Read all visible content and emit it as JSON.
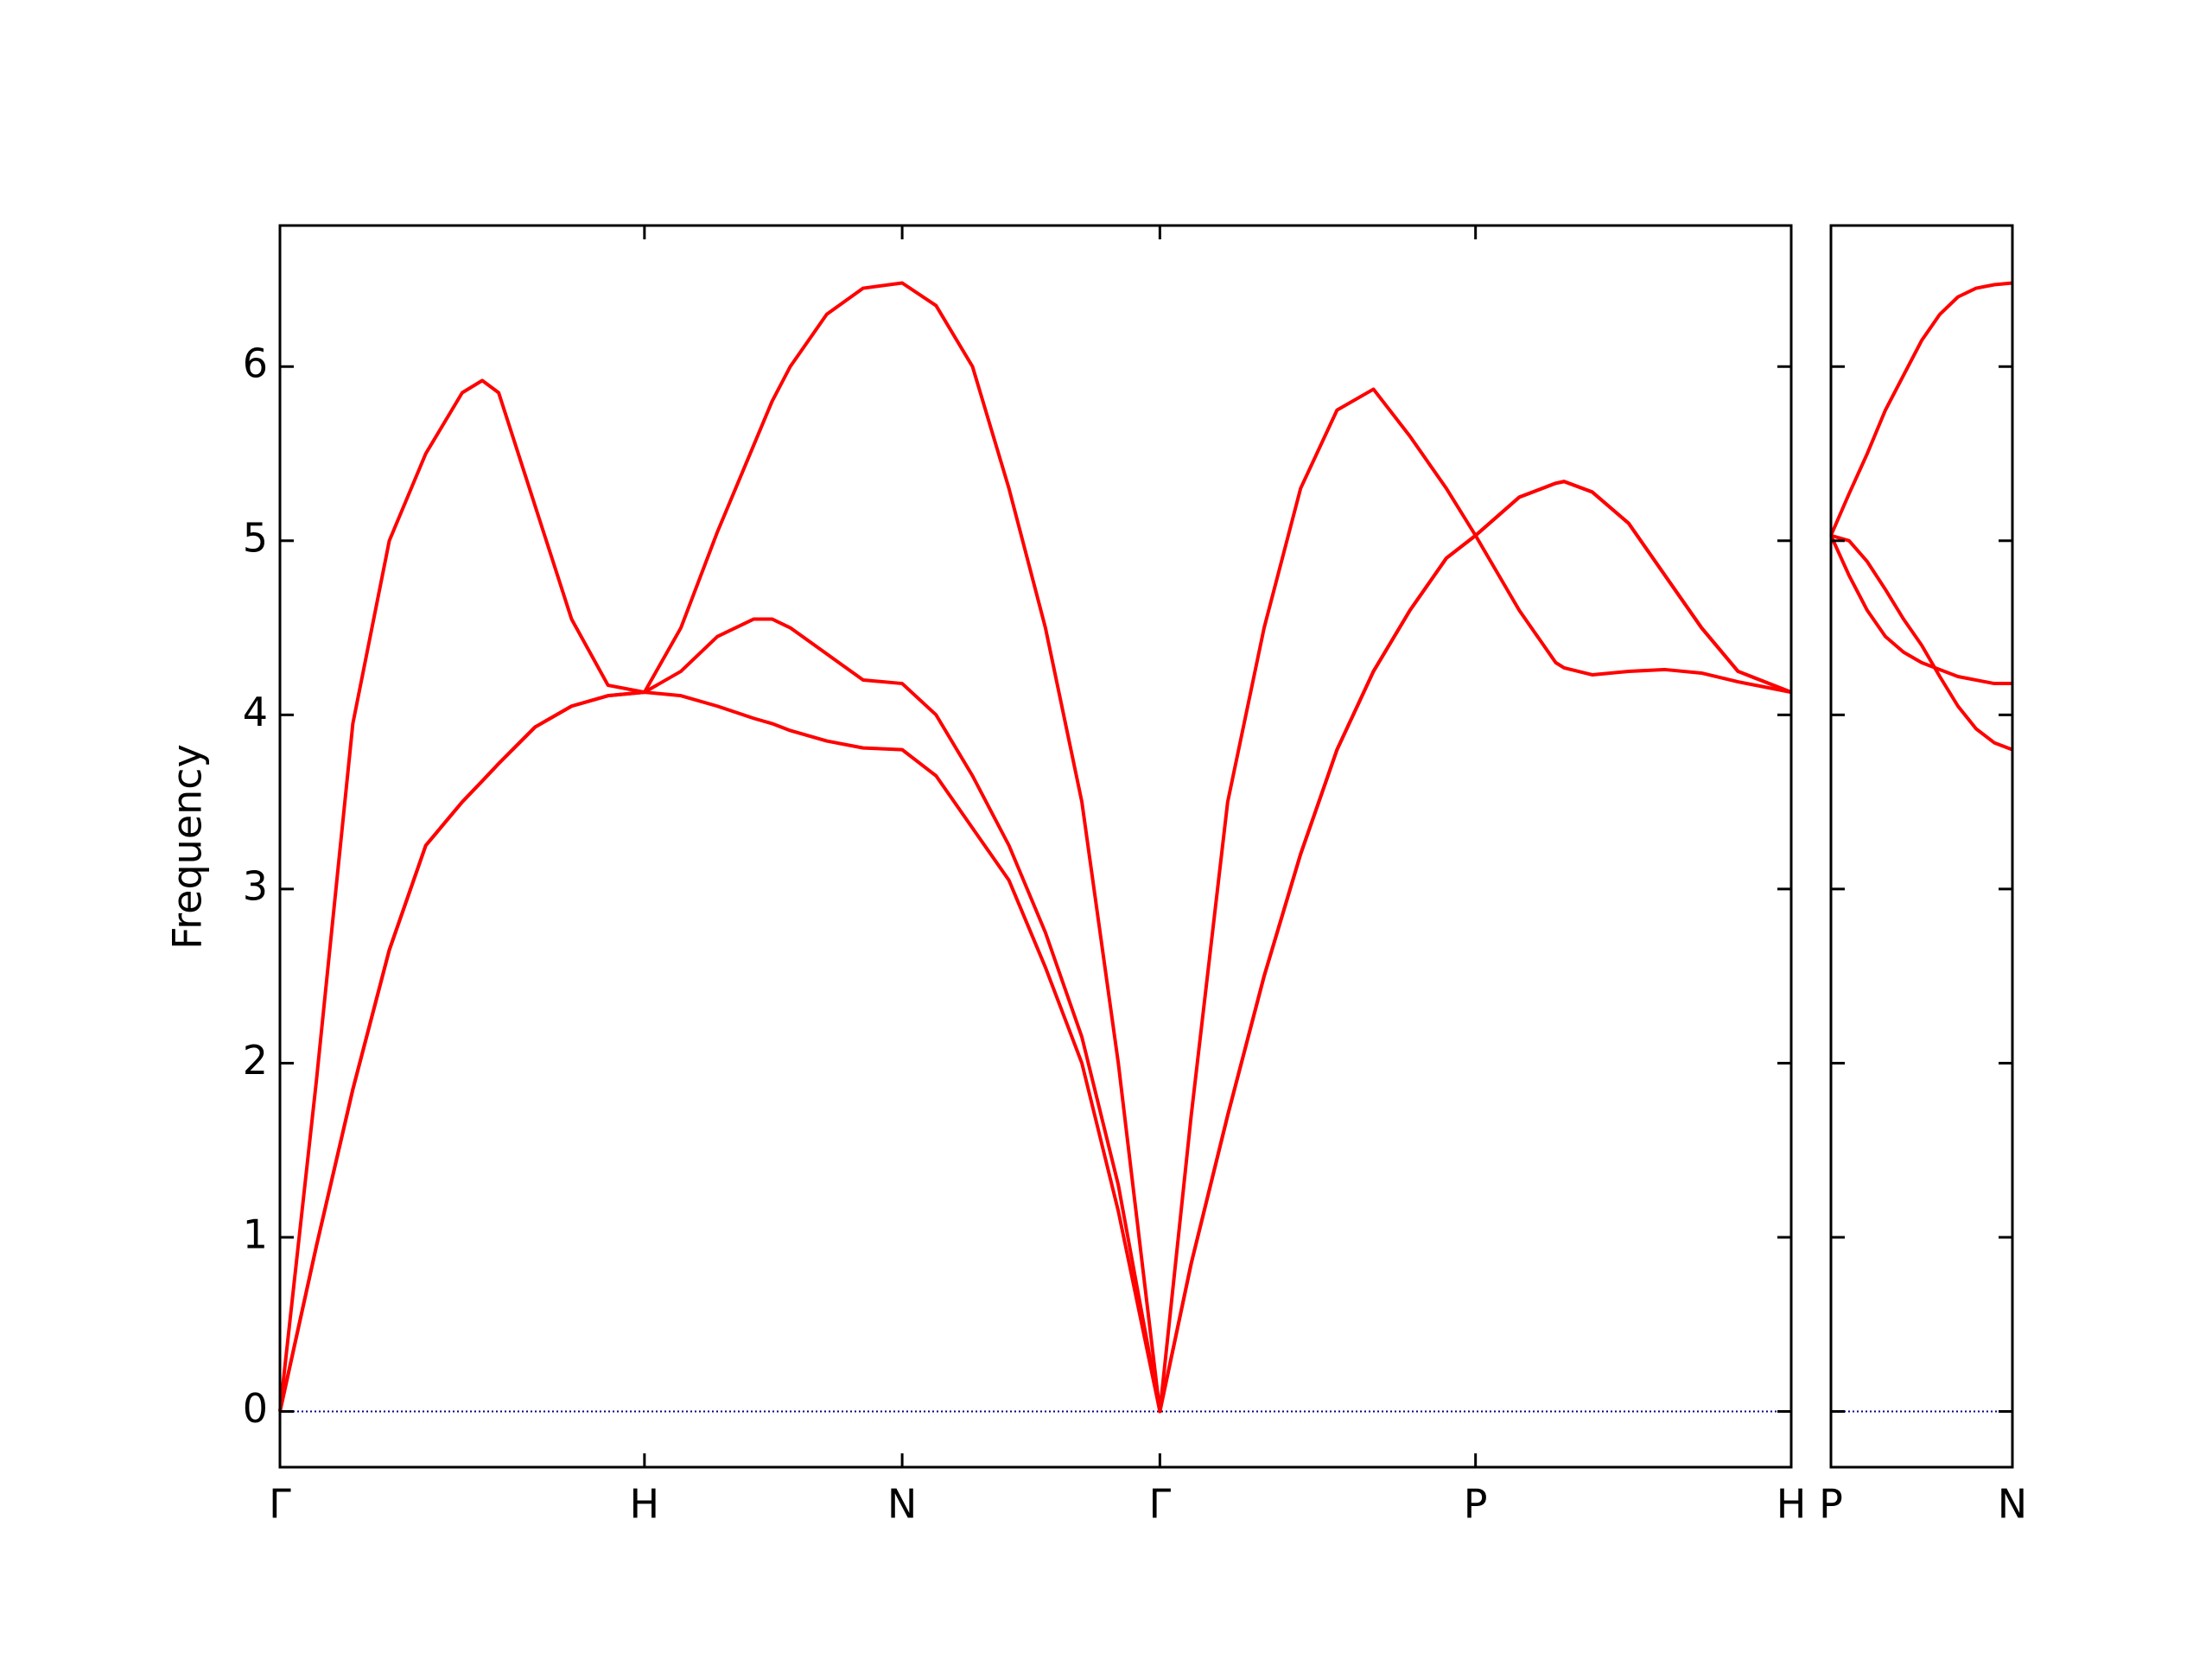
{
  "chart_data": [
    {
      "type": "line",
      "ylabel": "Frequency",
      "x": [
        0,
        0.1,
        0.2,
        0.3,
        0.4,
        0.5,
        0.555,
        0.6,
        0.7,
        0.8,
        0.9,
        1.0,
        1.1,
        1.2,
        1.3,
        1.35,
        1.4,
        1.5,
        1.6,
        1.707,
        1.8,
        1.9,
        2.0,
        2.1,
        2.2,
        2.3,
        2.414,
        2.5,
        2.6,
        2.7,
        2.8,
        2.9,
        3.0,
        3.1,
        3.2,
        3.28,
        3.4,
        3.5,
        3.523,
        3.6,
        3.7,
        3.8,
        3.9,
        4.0,
        4.146
      ],
      "series": [
        {
          "color": "#ff0000",
          "values": [
            0,
            0.95,
            1.85,
            2.65,
            3.25,
            3.5,
            3.62,
            3.72,
            3.93,
            4.05,
            4.11,
            4.13,
            4.11,
            4.05,
            3.98,
            3.95,
            3.91,
            3.85,
            3.81,
            3.8,
            3.65,
            3.35,
            3.05,
            2.55,
            2.0,
            1.15,
            0,
            0.85,
            1.7,
            2.5,
            3.2,
            3.8,
            4.25,
            4.6,
            4.9,
            5.03,
            5.25,
            5.33,
            5.34,
            5.28,
            5.1,
            4.8,
            4.5,
            4.25,
            4.13
          ]
        },
        {
          "color": "#ff0000",
          "values": [
            0,
            0.95,
            1.85,
            2.65,
            3.25,
            3.5,
            3.62,
            3.72,
            3.93,
            4.05,
            4.11,
            4.13,
            4.25,
            4.45,
            4.55,
            4.55,
            4.5,
            4.35,
            4.2,
            4.18,
            4.0,
            3.65,
            3.25,
            2.75,
            2.15,
            1.3,
            0,
            0.85,
            1.7,
            2.5,
            3.2,
            3.8,
            4.25,
            4.6,
            4.9,
            5.03,
            5.25,
            5.33,
            5.34,
            5.28,
            5.1,
            4.8,
            4.5,
            4.25,
            4.13
          ]
        },
        {
          "color": "#ff0000",
          "values": [
            0,
            1.9,
            3.95,
            5.0,
            5.5,
            5.85,
            5.92,
            5.85,
            5.2,
            4.55,
            4.17,
            4.13,
            4.5,
            5.05,
            5.55,
            5.8,
            6.0,
            6.3,
            6.45,
            6.48,
            6.35,
            6.0,
            5.3,
            4.5,
            3.5,
            2.0,
            0,
            1.7,
            3.5,
            4.5,
            5.3,
            5.75,
            5.87,
            5.6,
            5.3,
            5.03,
            4.6,
            4.3,
            4.27,
            4.23,
            4.25,
            4.26,
            4.24,
            4.19,
            4.13
          ]
        }
      ],
      "xlim": [
        0,
        4.146
      ],
      "xticks": [
        {
          "value": 0,
          "label": "Γ"
        },
        {
          "value": 1.0,
          "label": "H"
        },
        {
          "value": 1.707,
          "label": "N"
        },
        {
          "value": 2.414,
          "label": "Γ"
        },
        {
          "value": 3.28,
          "label": "P"
        },
        {
          "value": 4.146,
          "label": "H"
        }
      ],
      "ylim": [
        -0.32,
        6.81
      ],
      "yticks": [
        0,
        1,
        2,
        3,
        4,
        5,
        6
      ],
      "reference_line": {
        "value": 0,
        "color": "#00008b"
      }
    },
    {
      "type": "line",
      "x": [
        0,
        0.05,
        0.1,
        0.15,
        0.2,
        0.25,
        0.3,
        0.35,
        0.4,
        0.45,
        0.5
      ],
      "series": [
        {
          "color": "#ff0000",
          "values": [
            5.03,
            5.27,
            5.5,
            5.75,
            5.95,
            6.15,
            6.3,
            6.4,
            6.45,
            6.47,
            6.48
          ]
        },
        {
          "color": "#ff0000",
          "values": [
            5.03,
            4.8,
            4.6,
            4.45,
            4.36,
            4.3,
            4.26,
            4.22,
            4.2,
            4.18,
            4.18
          ]
        },
        {
          "color": "#ff0000",
          "values": [
            5.03,
            5.0,
            4.88,
            4.72,
            4.55,
            4.4,
            4.22,
            4.05,
            3.92,
            3.84,
            3.8
          ]
        }
      ],
      "xlim": [
        0,
        0.5
      ],
      "xticks": [
        {
          "value": 0,
          "label": "P"
        },
        {
          "value": 0.5,
          "label": "N"
        }
      ],
      "ylim": [
        -0.32,
        6.81
      ],
      "reference_line": {
        "value": 0,
        "color": "#00008b"
      }
    }
  ]
}
